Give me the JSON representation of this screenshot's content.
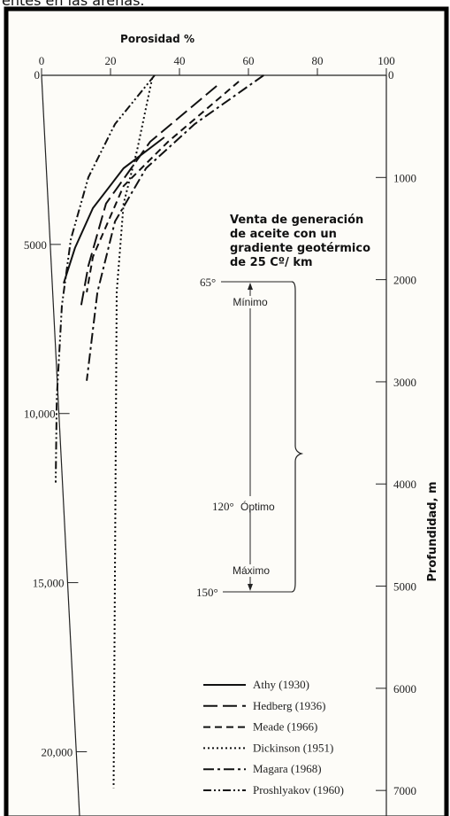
{
  "caption_fragment": "entes en las arenas.",
  "chart_data": {
    "type": "line",
    "x_label": "Porosidad %",
    "y_label": "Profundidad, m",
    "xlim": [
      0,
      100
    ],
    "xticks": [
      0,
      20,
      40,
      60,
      80,
      100
    ],
    "ylim": [
      0,
      7250
    ],
    "yticks": [
      0,
      1000,
      2000,
      3000,
      4000,
      5000,
      6000,
      7000
    ],
    "y2lim": [
      0,
      21900
    ],
    "y2ticks": [
      0,
      5000,
      {
        "value": 10000,
        "label": "10,000"
      },
      {
        "value": 15000,
        "label": "15,000"
      },
      {
        "value": 20000,
        "label": "20,000"
      }
    ],
    "y_inverted": true,
    "annotations": {
      "zone_title": [
        "Venta de generación",
        "de aceite con un",
        "gradiente geotérmico",
        "de 25 Cº/ km"
      ],
      "t65": "65°",
      "minimo": "Mínimo",
      "t120": "120°",
      "optimo": "Óptimo",
      "maximo": "Máximo",
      "t150": "150°"
    },
    "series": [
      {
        "name": "Athy (1930)",
        "color": "#111111",
        "dash": "none",
        "x": [
          35.6,
          23.8,
          14.9,
          9.7,
          6.4
        ],
        "values": [
          607,
          910,
          1300,
          1690,
          2036
        ]
      },
      {
        "name": "Hedberg (1936)",
        "color": "#111111",
        "dash": "16,6",
        "x": [
          50.8,
          31.5,
          18.7,
          13.6,
          11.5
        ],
        "values": [
          104,
          650,
          1256,
          1863,
          2253
        ]
      },
      {
        "name": "Meade (1966)",
        "color": "#111111",
        "dash": "8,5",
        "x": [
          57.2,
          36.7,
          23.8,
          14.9,
          13.1
        ],
        "values": [
          61,
          650,
          1083,
          1776,
          2123
        ]
      },
      {
        "name": "Dickinson (1951)",
        "color": "#111111",
        "dash": "2,3",
        "x": [
          32.1,
          27.7,
          23.8,
          21.8,
          20.9
        ],
        "values": [
          26,
          737,
          1256,
          2123,
          6976
        ]
      },
      {
        "name": "Magara (1968)",
        "color": "#111111",
        "dash": "12,4,3,4",
        "x": [
          64.4,
          44.4,
          30.3,
          21.3,
          16.2,
          13.1
        ],
        "values": [
          0,
          477,
          910,
          1430,
          2123,
          2990
        ]
      },
      {
        "name": "Proshlyakov (1960)",
        "color": "#111111",
        "dash": "9,3,2,3,2,3",
        "x": [
          32.8,
          21.3,
          13.6,
          8.5,
          5.9,
          4.4,
          4.1
        ],
        "values": [
          0,
          477,
          997,
          1603,
          2253,
          3163,
          3986
        ]
      }
    ]
  }
}
